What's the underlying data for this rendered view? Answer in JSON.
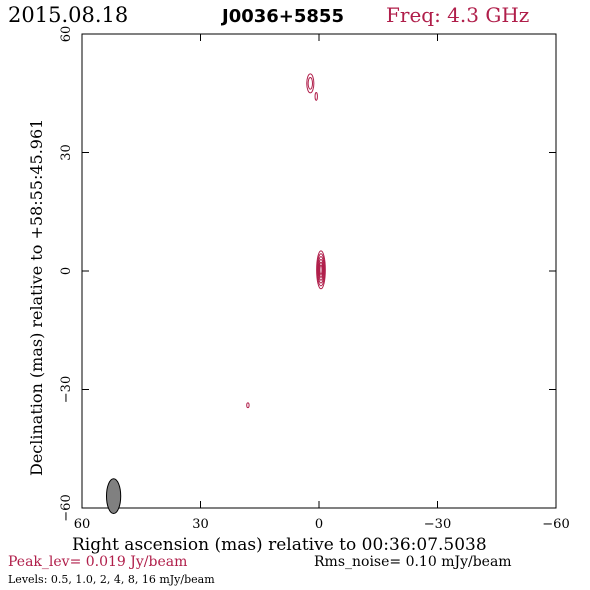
{
  "header": {
    "date": "2015.08.18",
    "source": "J0036+5855",
    "freq": "Freq: 4.3 GHz"
  },
  "footer": {
    "peak": "Peak_lev=  0.019 Jy/beam",
    "rms": "Rms_noise= 0.10 mJy/beam",
    "levels": "Levels: 0.5, 1.0,   2,   4,   8,  16 mJy/beam"
  },
  "colors": {
    "contour": "#b01e4a",
    "beam_fill": "#808080",
    "axis": "#000000"
  },
  "chart_data": {
    "type": "contour",
    "xlabel": "Right ascension (mas) relative to 00:36:07.5038",
    "ylabel": "Declination (mas) relative to +58:55:45.961",
    "xlim": [
      60,
      -60
    ],
    "ylim": [
      -60,
      60
    ],
    "xticks": [
      60,
      30,
      0,
      -30,
      -60
    ],
    "yticks": [
      60,
      30,
      0,
      -30,
      -60
    ],
    "xtick_labels": [
      "60",
      "30",
      "0",
      "−30",
      "−60"
    ],
    "ytick_labels": [
      "60",
      "30",
      "0",
      "−30",
      "−60"
    ],
    "levels_mJy_per_beam": [
      0.5,
      1.0,
      2,
      4,
      8,
      16
    ],
    "peak_Jy_per_beam": 0.019,
    "rms_noise_mJy_per_beam": 0.1,
    "components": [
      {
        "x": -0.5,
        "y": 0.3,
        "nlevels": 6,
        "sx": 1.1,
        "sy": 4.8
      },
      {
        "x": 2.2,
        "y": 47.5,
        "nlevels": 2,
        "sx": 0.9,
        "sy": 2.4
      },
      {
        "x": 0.7,
        "y": 44.2,
        "nlevels": 1,
        "sx": 0.3,
        "sy": 1.0
      },
      {
        "x": 18,
        "y": -34,
        "nlevels": 1,
        "sx": 0.3,
        "sy": 0.6
      }
    ],
    "beam": {
      "x": 52,
      "y": -57,
      "major": 4.4,
      "minor": 1.8
    }
  }
}
